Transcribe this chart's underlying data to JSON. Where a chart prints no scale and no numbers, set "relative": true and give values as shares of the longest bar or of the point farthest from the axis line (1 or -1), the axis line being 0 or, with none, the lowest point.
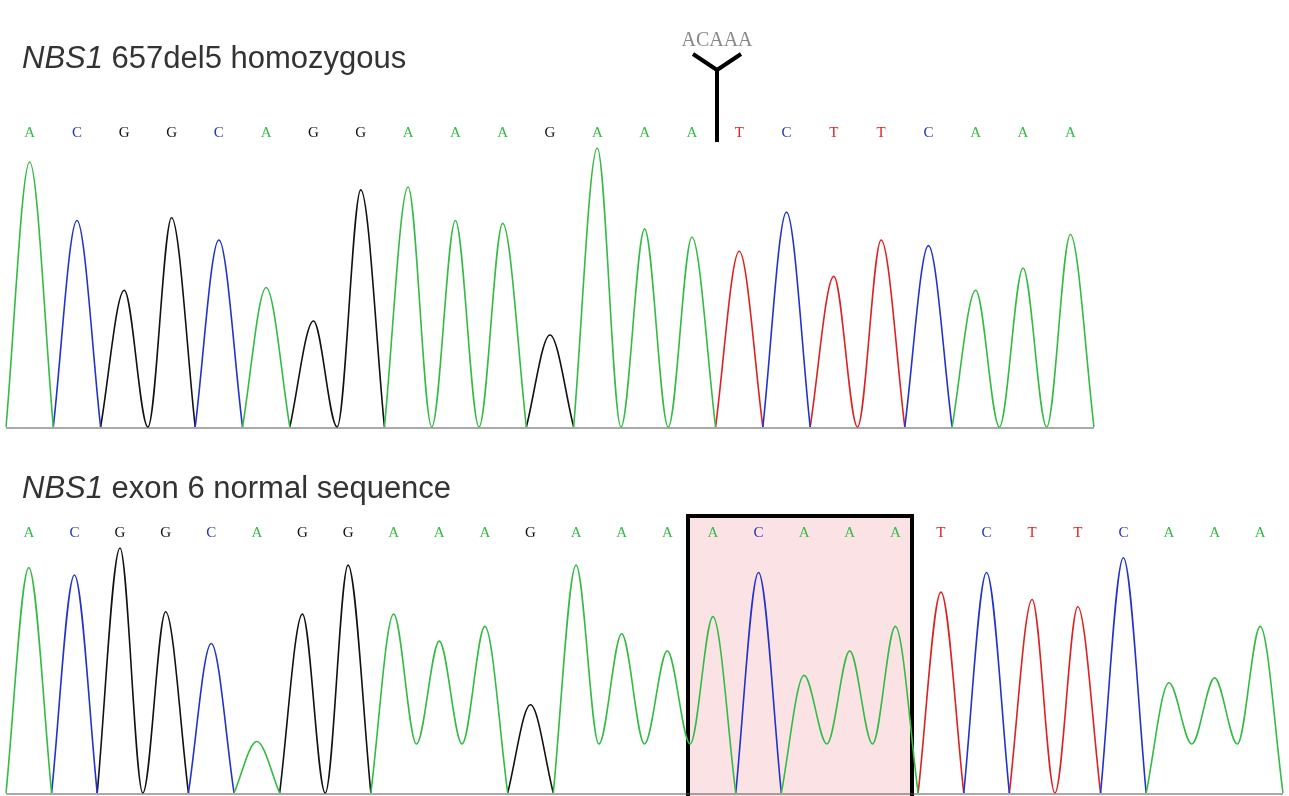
{
  "chart_data": [
    {
      "type": "line",
      "title": "NBS1 657del5 homozygous",
      "relative": true,
      "annotations": [
        "ACAAA"
      ],
      "categories": [
        null,
        "A",
        null,
        "C",
        null,
        "G",
        null,
        "G",
        null,
        "C",
        null,
        "A",
        null,
        "G",
        null,
        "G",
        null,
        "A",
        null,
        "A",
        null,
        "A",
        null,
        "G",
        null,
        "A",
        null,
        "A",
        null,
        "A",
        null,
        "T",
        null,
        "C",
        null,
        "T",
        null,
        "T",
        null,
        "C",
        null,
        "A",
        null,
        "A",
        null,
        "A",
        null
      ],
      "series": [
        {
          "color": "#33bb44",
          "values": [
            0,
            0.95,
            0,
            null,
            null,
            null,
            null,
            null,
            null,
            null,
            0,
            0.5,
            0,
            null,
            null,
            null,
            0,
            0.86,
            0,
            0.74,
            0,
            0.73,
            0,
            null,
            0,
            1,
            0,
            0.71,
            0,
            0.68,
            0,
            null,
            null,
            null,
            null,
            null,
            null,
            null,
            null,
            null,
            0,
            0.49,
            0,
            0.57,
            0,
            0.69,
            0
          ]
        },
        {
          "color": "#2233cc",
          "values": [
            null,
            null,
            0,
            0.74,
            0,
            null,
            null,
            null,
            0,
            0.67,
            0,
            null,
            null,
            null,
            null,
            null,
            null,
            null,
            null,
            null,
            null,
            null,
            null,
            null,
            null,
            null,
            null,
            null,
            null,
            null,
            null,
            null,
            0,
            0.77,
            0,
            null,
            null,
            null,
            0,
            0.65,
            0,
            null,
            null,
            null,
            null,
            null,
            null
          ]
        },
        {
          "color": "#111111",
          "values": [
            null,
            null,
            null,
            null,
            0,
            0.49,
            0,
            0.75,
            0,
            null,
            null,
            null,
            0,
            0.38,
            0,
            0.85,
            0,
            null,
            null,
            null,
            null,
            null,
            0,
            0.33,
            0,
            null,
            null,
            null,
            null,
            null,
            null,
            null,
            null,
            null,
            null,
            null,
            null,
            null,
            null,
            null,
            null,
            null,
            null,
            null,
            null,
            null,
            null
          ]
        },
        {
          "color": "#dd2222",
          "values": [
            null,
            null,
            null,
            null,
            null,
            null,
            null,
            null,
            null,
            null,
            null,
            null,
            null,
            null,
            null,
            null,
            null,
            null,
            null,
            null,
            null,
            null,
            null,
            null,
            null,
            null,
            null,
            null,
            null,
            null,
            0,
            0.63,
            0,
            null,
            0,
            0.54,
            0,
            0.67,
            0,
            null,
            null,
            null,
            null,
            null,
            null,
            null,
            null
          ]
        }
      ]
    },
    {
      "type": "line",
      "title": "NBS1 exon 6 normal sequence",
      "relative": true,
      "categories": [
        null,
        "A",
        null,
        "C",
        null,
        "G",
        null,
        "G",
        null,
        "C",
        null,
        "A",
        null,
        "G",
        null,
        "G",
        null,
        "A",
        null,
        "A",
        null,
        "A",
        null,
        "G",
        null,
        "A",
        null,
        "A",
        null,
        "A",
        null,
        "A",
        null,
        "C",
        null,
        "A",
        null,
        "A",
        null,
        "A",
        null,
        "T",
        null,
        "C",
        null,
        "T",
        null,
        "T",
        null,
        "C",
        null,
        "A",
        null,
        "A",
        null,
        "A",
        null
      ],
      "series": [
        {
          "color": "#33bb44",
          "values": [
            0,
            0.92,
            0,
            null,
            null,
            null,
            null,
            null,
            null,
            null,
            0,
            0.21,
            0,
            null,
            null,
            null,
            0,
            0.73,
            0.2,
            0.62,
            0.2,
            0.68,
            0,
            null,
            0,
            0.93,
            0.2,
            0.65,
            0.2,
            0.58,
            0.2,
            0.72,
            0,
            null,
            0,
            0.48,
            0.2,
            0.58,
            0.2,
            0.68,
            0,
            null,
            null,
            null,
            null,
            null,
            null,
            null,
            null,
            null,
            0,
            0.45,
            0.2,
            0.47,
            0.2,
            0.68,
            0
          ]
        },
        {
          "color": "#2233cc",
          "values": [
            null,
            null,
            0,
            0.89,
            0,
            null,
            null,
            null,
            0,
            0.61,
            0,
            null,
            null,
            null,
            null,
            null,
            null,
            null,
            null,
            null,
            null,
            null,
            null,
            null,
            null,
            null,
            null,
            null,
            null,
            null,
            null,
            null,
            0,
            0.9,
            0,
            null,
            null,
            null,
            null,
            null,
            null,
            null,
            0,
            0.9,
            0,
            null,
            null,
            null,
            0,
            0.96,
            0,
            null,
            null,
            null,
            null,
            null,
            null
          ]
        },
        {
          "color": "#111111",
          "values": [
            null,
            null,
            null,
            null,
            0,
            1,
            0,
            0.74,
            0,
            null,
            null,
            null,
            0,
            0.73,
            0,
            0.93,
            0,
            null,
            null,
            null,
            null,
            null,
            0,
            0.36,
            0,
            null,
            null,
            null,
            null,
            null,
            null,
            null,
            null,
            null,
            null,
            null,
            null,
            null,
            null,
            null,
            null,
            null,
            null,
            null,
            null,
            null,
            null,
            null,
            null,
            null,
            null,
            null,
            null,
            null,
            null,
            null,
            null
          ]
        },
        {
          "color": "#dd2222",
          "values": [
            null,
            null,
            null,
            null,
            null,
            null,
            null,
            null,
            null,
            null,
            null,
            null,
            null,
            null,
            null,
            null,
            null,
            null,
            null,
            null,
            null,
            null,
            null,
            null,
            null,
            null,
            null,
            null,
            null,
            null,
            null,
            null,
            null,
            null,
            null,
            null,
            null,
            null,
            null,
            null,
            0,
            0.82,
            0,
            null,
            0,
            0.79,
            0,
            0.76,
            0,
            null,
            null,
            null,
            null,
            null,
            null,
            null,
            null
          ]
        }
      ]
    }
  ]
}
